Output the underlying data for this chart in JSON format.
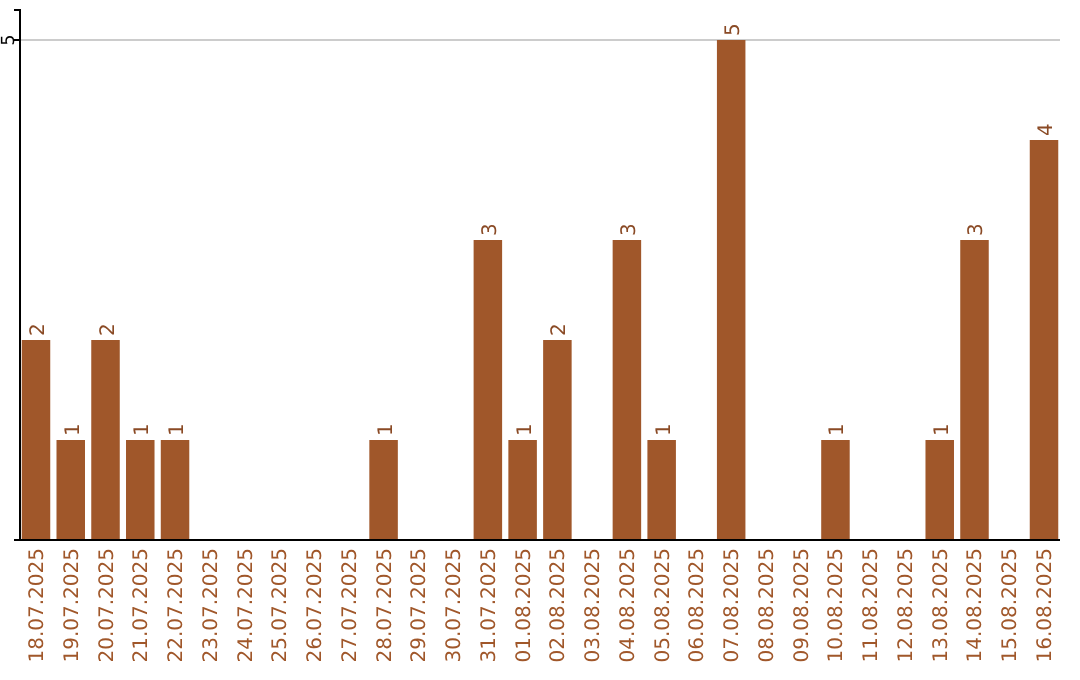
{
  "chart_data": {
    "type": "bar",
    "categories": [
      "18.07.2025",
      "19.07.2025",
      "20.07.2025",
      "21.07.2025",
      "22.07.2025",
      "23.07.2025",
      "24.07.2025",
      "25.07.2025",
      "26.07.2025",
      "27.07.2025",
      "28.07.2025",
      "29.07.2025",
      "30.07.2025",
      "31.07.2025",
      "01.08.2025",
      "02.08.2025",
      "03.08.2025",
      "04.08.2025",
      "05.08.2025",
      "06.08.2025",
      "07.08.2025",
      "08.08.2025",
      "09.08.2025",
      "10.08.2025",
      "11.08.2025",
      "12.08.2025",
      "13.08.2025",
      "14.08.2025",
      "15.08.2025",
      "16.08.2025"
    ],
    "values": [
      2,
      1,
      2,
      1,
      1,
      0,
      0,
      0,
      0,
      0,
      1,
      0,
      0,
      3,
      1,
      2,
      0,
      3,
      1,
      0,
      5,
      0,
      0,
      1,
      0,
      0,
      1,
      3,
      0,
      4
    ],
    "value_labels": [
      "2",
      "1",
      "2",
      "1",
      "1",
      null,
      null,
      null,
      null,
      null,
      "1",
      null,
      null,
      "3",
      "1",
      "2",
      null,
      "3",
      "1",
      null,
      "5",
      null,
      null,
      "1",
      null,
      null,
      "1",
      "3",
      null,
      "4"
    ],
    "color": "#a0572a",
    "ylim": [
      0,
      5.3
    ],
    "yticks": [
      5
    ],
    "grid": "y"
  }
}
